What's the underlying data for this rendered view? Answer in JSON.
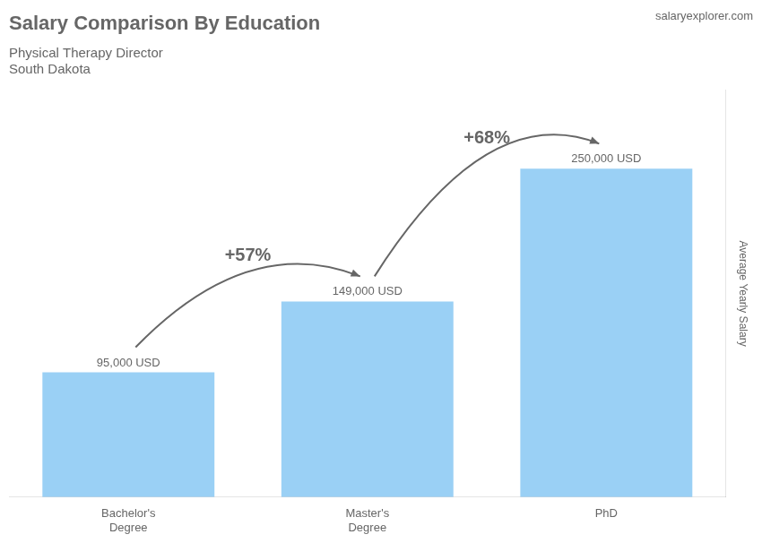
{
  "chart_data": {
    "type": "bar",
    "title": "Salary Comparison By Education",
    "subtitle": [
      "Physical Therapy Director",
      "South Dakota"
    ],
    "source": "salaryexplorer.com",
    "ylabel": "Average Yearly Salary",
    "categories": [
      "Bachelor's\nDegree",
      "Master's\nDegree",
      "PhD"
    ],
    "values": [
      95000,
      149000,
      250000
    ],
    "value_labels": [
      "95,000 USD",
      "149,000 USD",
      "250,000 USD"
    ],
    "data_labels": true,
    "annotations": [
      "+57%",
      "+68%"
    ],
    "ylim": [
      0,
      310000
    ],
    "tick_labels": "x",
    "grid": false
  }
}
